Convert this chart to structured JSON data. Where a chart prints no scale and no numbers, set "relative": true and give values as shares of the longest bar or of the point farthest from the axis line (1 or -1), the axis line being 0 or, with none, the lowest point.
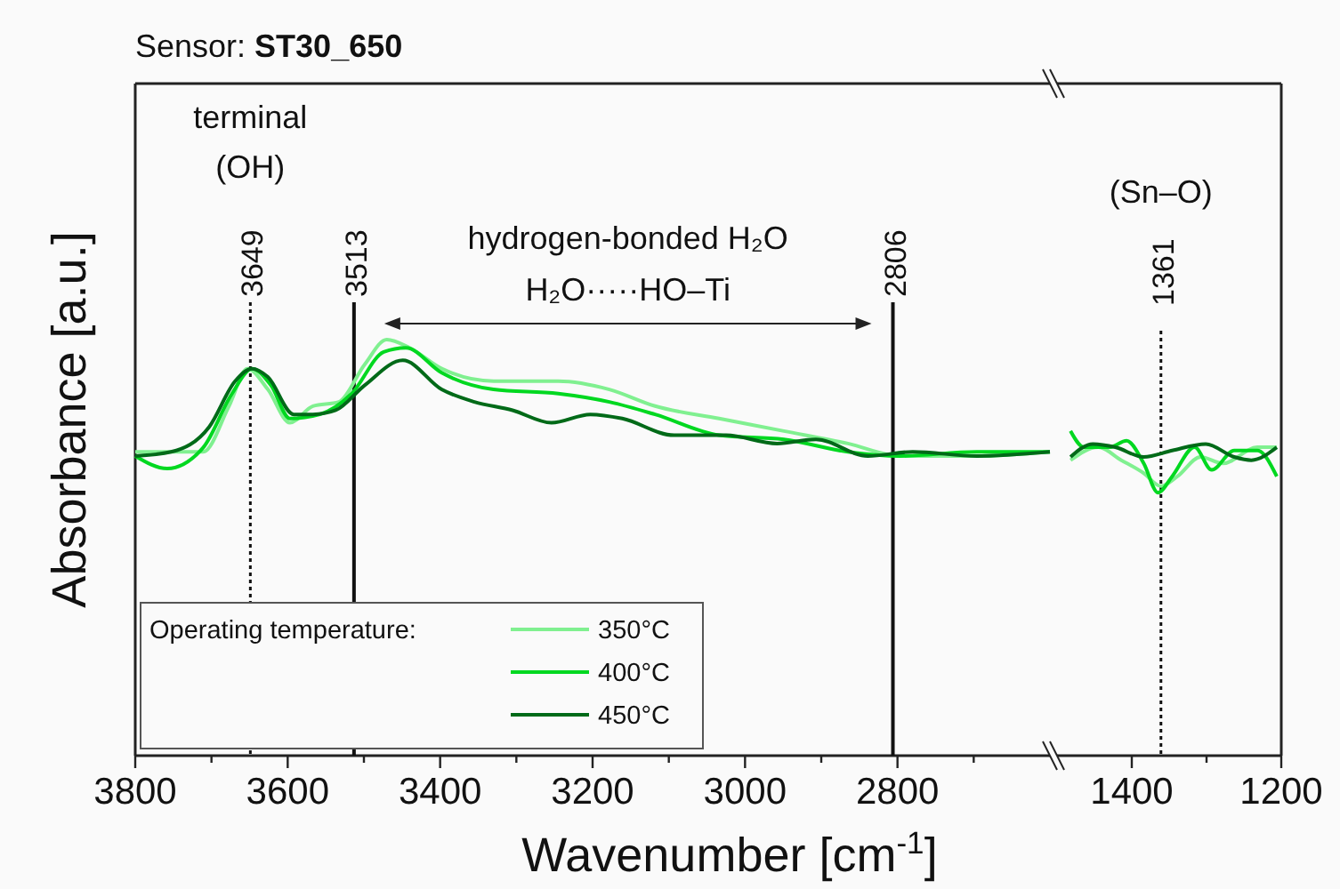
{
  "chart_data": [
    {
      "type": "line",
      "title": "Sensor: ST30_650",
      "xlabel": "Wavenumber [cm$^{-1}$]",
      "ylabel": "Absorbance [a.u.]",
      "legend_title": "Operating temperature:",
      "legend": "bottom left",
      "relative": true,
      "grid": false,
      "xlim": [
        3800,
        2600
      ],
      "xticks": [
        3800,
        {
          "value": 3700,
          "label": null
        },
        3600,
        {
          "value": 3500,
          "label": null
        },
        3400,
        {
          "value": 3300,
          "label": null
        },
        3200,
        {
          "value": 3100,
          "label": null
        },
        3000,
        {
          "value": 2900,
          "label": null
        },
        2800,
        {
          "value": 2700,
          "label": null
        }
      ],
      "ref_lines": [
        {
          "axis": "x",
          "value": 3649,
          "label": "3649",
          "line_style": "dotted"
        },
        {
          "axis": "x",
          "value": 3513,
          "label": "3513",
          "line_style": "solid"
        },
        {
          "axis": "x",
          "value": 2806,
          "label": "2806",
          "line_style": "solid"
        }
      ],
      "annotations": [
        "terminal\n(OH)",
        "hydrogen-bonded H₂O",
        "H₂O·····HO–Ti"
      ],
      "series": [
        {
          "name": "350°C",
          "color": "#80f090",
          "x": [
            3800,
            3711,
            3677,
            3653,
            3626,
            3597,
            3567,
            3533,
            3499,
            3470,
            3440,
            3398,
            3330,
            3245,
            3178,
            3118,
            3034,
            2949,
            2865,
            2797,
            2696,
            2600
          ],
          "values": [
            0.73,
            0.73,
            0.84,
            0.93,
            0.88,
            0.8,
            0.84,
            0.85,
            0.94,
            1.0,
            0.98,
            0.93,
            0.9,
            0.9,
            0.88,
            0.84,
            0.81,
            0.78,
            0.75,
            0.72,
            0.72,
            0.73
          ]
        },
        {
          "name": "400°C",
          "color": "#00d820",
          "x": [
            3800,
            3758,
            3711,
            3673,
            3647,
            3622,
            3597,
            3558,
            3516,
            3474,
            3445,
            3398,
            3330,
            3245,
            3178,
            3118,
            3034,
            2949,
            2865,
            2797,
            2696,
            2600
          ],
          "values": [
            0.72,
            0.69,
            0.74,
            0.87,
            0.93,
            0.89,
            0.81,
            0.82,
            0.87,
            0.97,
            0.98,
            0.92,
            0.88,
            0.87,
            0.85,
            0.82,
            0.77,
            0.76,
            0.73,
            0.72,
            0.73,
            0.73
          ]
        },
        {
          "name": "450°C",
          "color": "#006a18",
          "x": [
            3800,
            3753,
            3703,
            3669,
            3647,
            3626,
            3592,
            3567,
            3537,
            3499,
            3449,
            3398,
            3355,
            3305,
            3254,
            3203,
            3161,
            3093,
            3025,
            2958,
            2907,
            2839,
            2780,
            2696,
            2600
          ],
          "values": [
            0.72,
            0.73,
            0.79,
            0.9,
            0.93,
            0.91,
            0.82,
            0.82,
            0.83,
            0.89,
            0.95,
            0.88,
            0.85,
            0.83,
            0.8,
            0.82,
            0.81,
            0.77,
            0.77,
            0.75,
            0.76,
            0.72,
            0.73,
            0.72,
            0.73
          ]
        }
      ]
    },
    {
      "type": "line",
      "relative": true,
      "grid": false,
      "xlim": [
        1500,
        1200
      ],
      "xticks": [
        1400,
        {
          "value": 1300,
          "label": null
        },
        1200
      ],
      "ref_lines": [
        {
          "axis": "x",
          "value": 1361,
          "label": "1361",
          "line_style": "dotted"
        }
      ],
      "annotations": [
        "(Sn–O)"
      ],
      "series": [
        {
          "color": "#80f090",
          "x": [
            1482,
            1445,
            1414,
            1384,
            1361,
            1339,
            1308,
            1278,
            1232,
            1206
          ],
          "values": [
            0.91,
            0.95,
            0.91,
            0.87,
            0.83,
            0.86,
            0.92,
            0.9,
            0.95,
            0.95
          ]
        },
        {
          "color": "#00d820",
          "x": [
            1482,
            1464,
            1430,
            1407,
            1384,
            1365,
            1346,
            1316,
            1293,
            1263,
            1232,
            1206
          ],
          "values": [
            1.0,
            0.95,
            0.95,
            0.97,
            0.9,
            0.81,
            0.86,
            0.95,
            0.88,
            0.94,
            0.94,
            0.86
          ]
        },
        {
          "color": "#006a18",
          "x": [
            1482,
            1452,
            1422,
            1384,
            1346,
            1301,
            1263,
            1240,
            1206
          ],
          "values": [
            0.92,
            0.96,
            0.95,
            0.92,
            0.94,
            0.96,
            0.92,
            0.91,
            0.95
          ]
        }
      ]
    }
  ]
}
